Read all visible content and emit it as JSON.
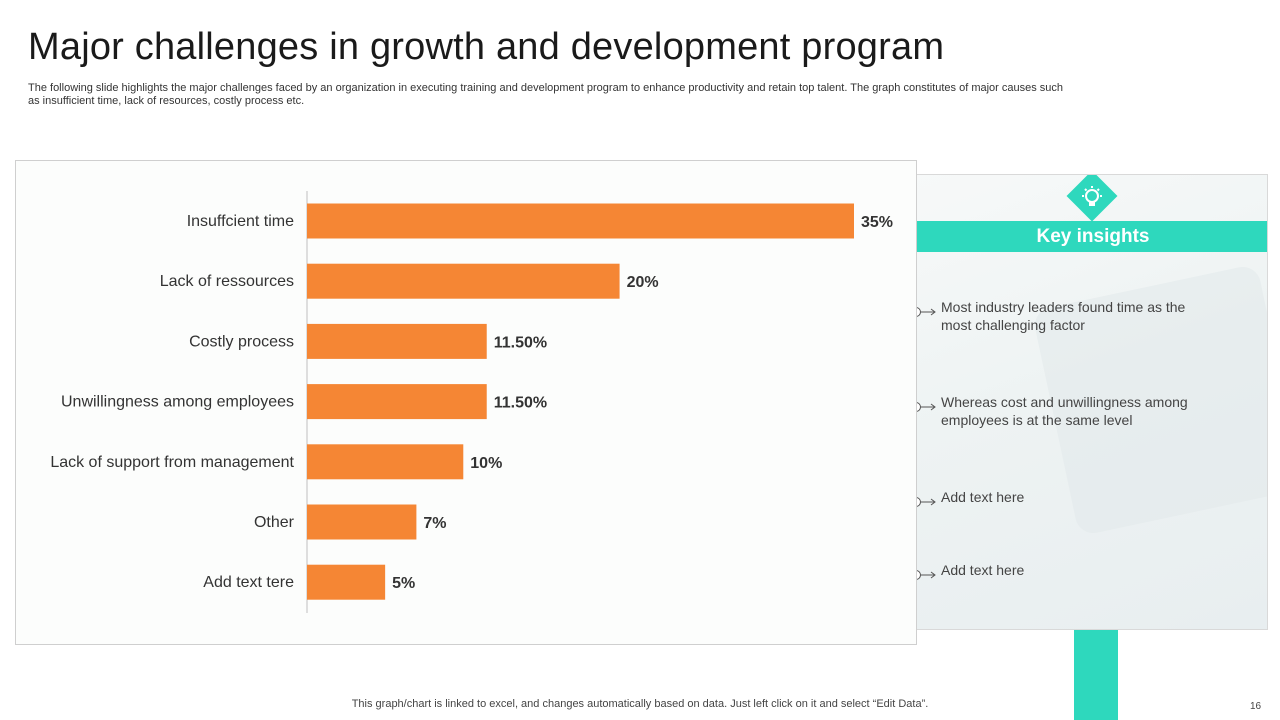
{
  "slide": {
    "title": "Major challenges in growth and development program",
    "subtitle": "The following slide highlights the major challenges faced by an organization in executing training and development program to enhance productivity and retain top talent. The graph constitutes of major causes such as insufficient time, lack of resources, costly process etc.",
    "footer_note": "This graph/chart is linked to excel,  and changes automatically based on data. Just left click on it and select “Edit Data”.",
    "page_number": "16"
  },
  "colors": {
    "bar": "#f58634",
    "accent": "#2ed8bd",
    "label": "#333333",
    "axis": "#bfbfbf"
  },
  "insights": {
    "header": "Key insights",
    "icon": "lightbulb-gear-icon",
    "items": [
      "Most industry leaders found time as the most challenging factor",
      "Whereas cost and unwillingness among employees is at the same level",
      "Add text here",
      "Add text here"
    ]
  },
  "chart_data": {
    "type": "bar",
    "orientation": "horizontal",
    "title": "",
    "xlabel": "",
    "ylabel": "",
    "categories": [
      "Insuffcient time",
      "Lack of ressources",
      "Costly process",
      "Unwillingness among employees",
      "Lack of support from management",
      "Other",
      "Add text tere"
    ],
    "values": [
      35,
      20,
      11.5,
      11.5,
      10,
      7,
      5
    ],
    "data_labels": [
      "35%",
      "20%",
      "11.50%",
      "11.50%",
      "10%",
      "7%",
      "5%"
    ],
    "xlim": [
      0,
      35
    ],
    "grid": false,
    "legend": "none"
  }
}
